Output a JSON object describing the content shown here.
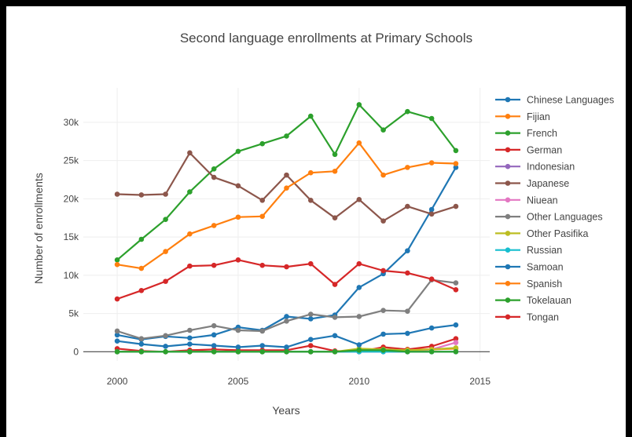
{
  "chart_data": {
    "type": "line",
    "title": "Second language enrollments at Primary Schools",
    "xlabel": "Years",
    "ylabel": "Number of enrollments",
    "xlim": [
      1998.6,
      2015.4
    ],
    "ylim": [
      -1200,
      34500
    ],
    "x_ticks": [
      2000,
      2005,
      2010,
      2015
    ],
    "x_tick_labels": [
      "2000",
      "2005",
      "2010",
      "2015"
    ],
    "y_ticks": [
      0,
      5000,
      10000,
      15000,
      20000,
      25000,
      30000
    ],
    "y_tick_labels": [
      "0",
      "5k",
      "10k",
      "15k",
      "20k",
      "25k",
      "30k"
    ],
    "grid": true,
    "legend_position": "right",
    "x": [
      2000,
      2001,
      2002,
      2003,
      2004,
      2005,
      2006,
      2007,
      2008,
      2009,
      2010,
      2011,
      2012,
      2013,
      2014
    ],
    "series": [
      {
        "name": "Chinese Languages",
        "color": "#1f77b4",
        "values": [
          2200,
          1600,
          2000,
          1800,
          2200,
          3200,
          2800,
          4600,
          4300,
          4800,
          8400,
          10200,
          13200,
          18600,
          24100
        ]
      },
      {
        "name": "Fijian",
        "color": "#ff7f0e",
        "values": [
          0,
          0,
          0,
          0,
          0,
          0,
          0,
          0,
          0,
          0,
          0,
          200,
          300,
          300,
          400
        ]
      },
      {
        "name": "French",
        "color": "#2ca02c",
        "values": [
          12000,
          14700,
          17300,
          20900,
          23900,
          26200,
          27200,
          28200,
          30800,
          25800,
          32300,
          29000,
          31400,
          30500,
          26300
        ]
      },
      {
        "name": "German",
        "color": "#d62728",
        "values": [
          400,
          100,
          0,
          200,
          300,
          200,
          200,
          200,
          800,
          100,
          0,
          600,
          300,
          700,
          1700
        ]
      },
      {
        "name": "Indonesian",
        "color": "#9467bd",
        "values": [
          0,
          0,
          0,
          0,
          0,
          0,
          0,
          0,
          0,
          0,
          0,
          0,
          0,
          0,
          0
        ]
      },
      {
        "name": "Japanese",
        "color": "#8c564b",
        "values": [
          20600,
          20500,
          20600,
          26000,
          22800,
          21700,
          19800,
          23100,
          19800,
          17500,
          19900,
          17100,
          19000,
          18000,
          19000
        ]
      },
      {
        "name": "Niuean",
        "color": "#e377c2",
        "values": [
          0,
          0,
          0,
          0,
          0,
          0,
          0,
          0,
          0,
          0,
          0,
          0,
          0,
          300,
          1200
        ]
      },
      {
        "name": "Other Languages",
        "color": "#7f7f7f",
        "values": [
          2700,
          1700,
          2100,
          2800,
          3400,
          2800,
          2700,
          4000,
          4900,
          4500,
          4600,
          5400,
          5300,
          9400,
          9000
        ]
      },
      {
        "name": "Other Pasifika",
        "color": "#bcbd22",
        "values": [
          0,
          0,
          0,
          0,
          0,
          0,
          0,
          0,
          0,
          0,
          400,
          300,
          200,
          300,
          500
        ]
      },
      {
        "name": "Russian",
        "color": "#17becf",
        "values": [
          0,
          0,
          0,
          0,
          0,
          0,
          0,
          0,
          0,
          0,
          0,
          0,
          0,
          0,
          0
        ]
      },
      {
        "name": "Samoan",
        "color": "#1f77b4",
        "values": [
          1400,
          1000,
          700,
          1000,
          800,
          600,
          800,
          600,
          1600,
          2100,
          900,
          2300,
          2400,
          3100,
          3500
        ]
      },
      {
        "name": "Spanish",
        "color": "#ff7f0e",
        "values": [
          11400,
          10900,
          13100,
          15400,
          16500,
          17600,
          17700,
          21400,
          23400,
          23600,
          27300,
          23100,
          24100,
          24700,
          24600
        ]
      },
      {
        "name": "Tokelauan",
        "color": "#2ca02c",
        "values": [
          0,
          0,
          0,
          0,
          0,
          0,
          0,
          0,
          0,
          0,
          200,
          200,
          0,
          0,
          0
        ]
      },
      {
        "name": "Tongan",
        "color": "#d62728",
        "values": [
          6900,
          8000,
          9200,
          11200,
          11300,
          12000,
          11300,
          11100,
          11500,
          8800,
          11500,
          10600,
          10300,
          9500,
          8100
        ]
      }
    ]
  }
}
